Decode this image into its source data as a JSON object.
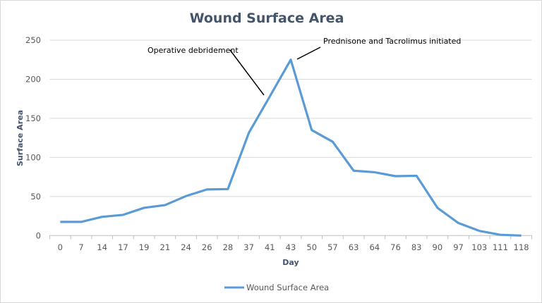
{
  "chart_data": {
    "type": "line",
    "title": "Wound Surface Area",
    "xlabel": "Day",
    "ylabel": "Surface Area",
    "categories": [
      "0",
      "7",
      "14",
      "17",
      "19",
      "21",
      "24",
      "26",
      "28",
      "37",
      "41",
      "43",
      "50",
      "57",
      "63",
      "64",
      "76",
      "83",
      "90",
      "97",
      "103",
      "111",
      "118"
    ],
    "series": [
      {
        "name": "Wound Surface Area",
        "color": "#5b9bd5",
        "values": [
          17.5,
          17.5,
          24,
          26.5,
          35.5,
          39,
          50.5,
          59,
          59.5,
          131.5,
          178,
          225,
          135,
          120,
          83,
          81,
          76,
          76.5,
          35.5,
          16,
          6,
          1,
          0
        ]
      }
    ],
    "ylim": [
      0,
      250
    ],
    "yticks": [
      0,
      50,
      100,
      150,
      200,
      250
    ],
    "grid": true,
    "legend": "bottom",
    "annotations": [
      {
        "text": "Operative debridement",
        "day": "41"
      },
      {
        "text": "Prednisone and Tacrolimus initiated",
        "day": "43"
      }
    ]
  }
}
